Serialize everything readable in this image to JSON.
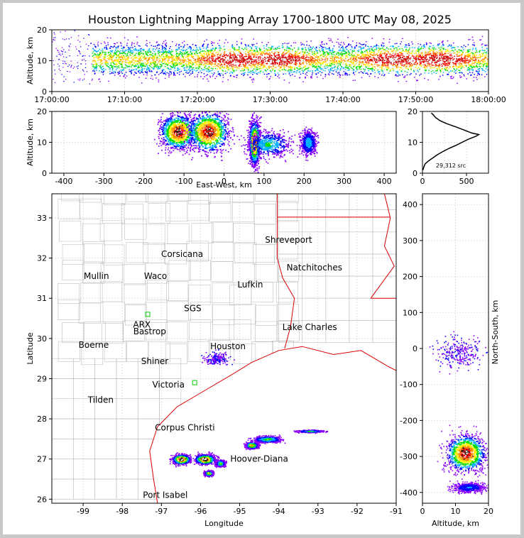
{
  "title": "Houston Lightning Mapping Array 1700-1800 UTC May 08, 2025",
  "colors": {
    "frame_bg": "#c8c8c8",
    "panel_border": "#000000",
    "grid": "#e0e0e0",
    "county": "#c0c0c0",
    "state": "#dd0000",
    "coast": "#dd0000"
  },
  "chart_data": [
    {
      "id": "time_altitude",
      "type": "scatter",
      "xlabel": "",
      "ylabel": "Altitude, km",
      "x_ticks": [
        "17:00:00",
        "17:10:00",
        "17:20:00",
        "17:30:00",
        "17:40:00",
        "17:50:00",
        "18:00:00"
      ],
      "xlim_minutes_after_1700": [
        0,
        60
      ],
      "ylim": [
        0,
        20
      ],
      "y_ticks": [
        0,
        10,
        20
      ],
      "source_density": {
        "onset_minute": 5.5,
        "core_altitude_km": [
          5,
          16
        ],
        "peak_minutes": [
          25,
          31,
          47,
          53
        ]
      }
    },
    {
      "id": "east_west_altitude",
      "type": "scatter",
      "xlabel": "East-West, km",
      "ylabel": "Altitude, km",
      "xlim": [
        -430,
        430
      ],
      "x_ticks": [
        -400,
        -300,
        -200,
        -100,
        0,
        100,
        200,
        300,
        400
      ],
      "ylim": [
        0,
        20
      ],
      "y_ticks": [
        0,
        10,
        20
      ],
      "cells": [
        {
          "x_km": -115,
          "alt_km": 13.5,
          "width_km": 50,
          "height_km": 7,
          "intensity": 1.0
        },
        {
          "x_km": -40,
          "alt_km": 13.5,
          "width_km": 55,
          "height_km": 8,
          "intensity": 1.0
        },
        {
          "x_km": 75,
          "alt_km": 10,
          "width_km": 15,
          "height_km": 9,
          "intensity": 0.95
        },
        {
          "x_km": 110,
          "alt_km": 9.5,
          "width_km": 60,
          "height_km": 5,
          "intensity": 0.45
        },
        {
          "x_km": 210,
          "alt_km": 10,
          "width_km": 22,
          "height_km": 5,
          "intensity": 0.4
        }
      ]
    },
    {
      "id": "altitude_histogram",
      "type": "line",
      "xlabel": "",
      "ylabel": "",
      "xlim": [
        0,
        750
      ],
      "x_ticks": [
        0,
        500
      ],
      "ylim": [
        0,
        20
      ],
      "y_ticks": [
        0,
        10,
        20
      ],
      "annotation": "29,312 src",
      "points": [
        [
          5,
          1
        ],
        [
          15,
          2
        ],
        [
          30,
          3
        ],
        [
          70,
          4
        ],
        [
          120,
          5
        ],
        [
          170,
          6
        ],
        [
          230,
          7
        ],
        [
          300,
          8
        ],
        [
          380,
          9
        ],
        [
          450,
          10
        ],
        [
          520,
          11
        ],
        [
          610,
          12
        ],
        [
          640,
          12.5
        ],
        [
          560,
          13
        ],
        [
          470,
          14
        ],
        [
          380,
          15
        ],
        [
          280,
          16
        ],
        [
          200,
          17
        ],
        [
          150,
          18
        ],
        [
          120,
          19
        ],
        [
          100,
          19.5
        ]
      ]
    },
    {
      "id": "plan_view",
      "type": "scatter",
      "xlabel": "Longitude",
      "ylabel": "Latitude",
      "xlim": [
        -99.8,
        -91.0
      ],
      "ylim": [
        25.9,
        33.6
      ],
      "x_ticks": [
        -99,
        -98,
        -97,
        -96,
        -95,
        -94,
        -93,
        -92,
        -91
      ],
      "y_ticks": [
        26,
        27,
        28,
        29,
        30,
        31,
        32,
        33
      ],
      "cities": [
        {
          "name": "Shreveport",
          "lon": -93.75,
          "lat": 32.45,
          "color": "#000000"
        },
        {
          "name": "Corsicana",
          "lon": -96.47,
          "lat": 32.1,
          "color": "#000000"
        },
        {
          "name": "Natchitoches",
          "lon": -93.09,
          "lat": 31.76,
          "color": "#000000"
        },
        {
          "name": "Mullin",
          "lon": -98.66,
          "lat": 31.55,
          "color": "#f08050"
        },
        {
          "name": "Waco",
          "lon": -97.15,
          "lat": 31.55,
          "color": "#000000"
        },
        {
          "name": "Lufkin",
          "lon": -94.73,
          "lat": 31.34,
          "color": "#000000"
        },
        {
          "name": "SGS",
          "lon": -96.2,
          "lat": 30.75,
          "color": "#000000"
        },
        {
          "name": "ARX",
          "lon": -97.5,
          "lat": 30.34,
          "color": "#f08050"
        },
        {
          "name": "Bastrop",
          "lon": -97.3,
          "lat": 30.17,
          "color": "#000000"
        },
        {
          "name": "Lake Charles",
          "lon": -93.21,
          "lat": 30.28,
          "color": "#000000"
        },
        {
          "name": "Boerne",
          "lon": -98.73,
          "lat": 29.84,
          "color": "#000000"
        },
        {
          "name": "Houston",
          "lon": -95.3,
          "lat": 29.8,
          "color": "#f0a000"
        },
        {
          "name": "Shiner",
          "lon": -97.17,
          "lat": 29.43,
          "color": "#000000"
        },
        {
          "name": "Victoria",
          "lon": -96.82,
          "lat": 28.85,
          "color": "#000000"
        },
        {
          "name": "Tilden",
          "lon": -98.55,
          "lat": 28.47,
          "color": "#000000"
        },
        {
          "name": "Corpus Christi",
          "lon": -96.4,
          "lat": 27.78,
          "color": "#000000"
        },
        {
          "name": "Hoover-Diana",
          "lon": -94.5,
          "lat": 27.0,
          "color": "#0000dd"
        },
        {
          "name": "Port Isabel",
          "lon": -96.9,
          "lat": 26.1,
          "color": "#000000"
        }
      ],
      "storm_clusters": [
        {
          "lon": -96.5,
          "lat": 27.0,
          "spread_lon": 0.22,
          "spread_lat": 0.12,
          "intensity": 1.0
        },
        {
          "lon": -95.9,
          "lat": 27.0,
          "spread_lon": 0.25,
          "spread_lat": 0.12,
          "intensity": 1.0
        },
        {
          "lon": -95.8,
          "lat": 26.65,
          "spread_lon": 0.1,
          "spread_lat": 0.06,
          "intensity": 0.8
        },
        {
          "lon": -95.5,
          "lat": 26.9,
          "spread_lon": 0.12,
          "spread_lat": 0.08,
          "intensity": 0.6
        },
        {
          "lon": -94.7,
          "lat": 27.35,
          "spread_lon": 0.15,
          "spread_lat": 0.08,
          "intensity": 0.8
        },
        {
          "lon": -94.3,
          "lat": 27.5,
          "spread_lon": 0.35,
          "spread_lat": 0.08,
          "intensity": 0.55
        },
        {
          "lon": -93.2,
          "lat": 27.7,
          "spread_lon": 0.3,
          "spread_lat": 0.03,
          "intensity": 0.5
        },
        {
          "lon": -95.6,
          "lat": 29.5,
          "spread_lon": 0.3,
          "spread_lat": 0.15,
          "intensity": 0.12
        }
      ]
    },
    {
      "id": "altitude_north_south",
      "type": "scatter",
      "xlabel": "Altitude, km",
      "ylabel": "North-South, km",
      "xlim": [
        0,
        20
      ],
      "x_ticks": [
        0,
        10,
        20
      ],
      "ylim": [
        -430,
        430
      ],
      "y_ticks": [
        -400,
        -300,
        -200,
        -100,
        0,
        100,
        200,
        300,
        400
      ],
      "cells": [
        {
          "alt_km": 13,
          "y_km": -290,
          "width_km": 7,
          "height_km": 55,
          "intensity": 1.0
        },
        {
          "alt_km": 11,
          "y_km": -10,
          "width_km": 9,
          "height_km": 45,
          "intensity": 0.12
        },
        {
          "alt_km": 14,
          "y_km": -385,
          "width_km": 6,
          "height_km": 15,
          "intensity": 0.3
        }
      ]
    }
  ]
}
